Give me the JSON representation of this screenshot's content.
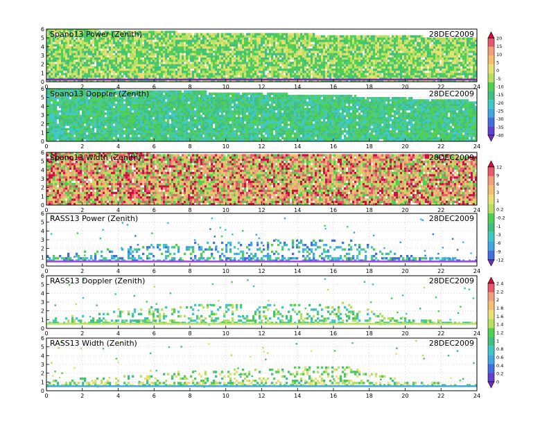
{
  "date": "28DEC2009",
  "x_ticks": [
    "0",
    "2",
    "4",
    "6",
    "8",
    "10",
    "12",
    "14",
    "16",
    "18",
    "20",
    "22",
    "24"
  ],
  "y_ticks": [
    "0",
    "1",
    "2",
    "3",
    "4",
    "5",
    "6"
  ],
  "colorbars": [
    {
      "id": "cb-power-doppler",
      "labels": [
        "20",
        "15",
        "10",
        "5",
        "0",
        "-5",
        "-10",
        "-15",
        "-20",
        "-25",
        "-30",
        "-35",
        "-40"
      ],
      "colors": [
        "#cc1040",
        "#e85a6a",
        "#f0a07a",
        "#f2c070",
        "#e8e070",
        "#b8e060",
        "#50d050",
        "#40c080",
        "#40c8c8",
        "#40a8e0",
        "#4070e0",
        "#6040d0",
        "#7a28b8"
      ]
    },
    {
      "id": "cb-width-power",
      "labels": [
        "12",
        "9",
        "6",
        "3",
        "1",
        "0.2",
        "-0.2",
        "-1",
        "-3",
        "-6",
        "-9",
        "-12"
      ],
      "colors": [
        "#cc1040",
        "#e85a6a",
        "#f0a07a",
        "#f2c070",
        "#e8e070",
        "#b8e060",
        "#50d050",
        "#40c080",
        "#40c8c8",
        "#40a8e0",
        "#4070e0",
        "#7a28b8"
      ]
    },
    {
      "id": "cb-rass",
      "labels": [
        "2.4",
        "2.2",
        "2",
        "1.8",
        "1.6",
        "1.4",
        "1.2",
        "1",
        "0.8",
        "0.6",
        "0.4",
        "0.2",
        "0"
      ],
      "colors": [
        "#cc1040",
        "#e85a6a",
        "#f0a07a",
        "#f2c070",
        "#e8e070",
        "#b8e060",
        "#50d050",
        "#40c080",
        "#40c8c8",
        "#40a8e0",
        "#4070e0",
        "#6040d0",
        "#7a28b8"
      ]
    }
  ],
  "chart_data": [
    {
      "type": "heatmap",
      "title": "Spano13 Power (Zenith)",
      "date": "28DEC2009",
      "xlim": [
        0,
        24
      ],
      "ylim": [
        0,
        6
      ],
      "colorbar": "cb-power-doppler",
      "coverage": [
        [
          0,
          6
        ],
        [
          6,
          5.6
        ],
        [
          12,
          5.4
        ],
        [
          18,
          5.2
        ],
        [
          24,
          4.9
        ]
      ],
      "dominant_colors": [
        "#50d050",
        "#b8e060",
        "#e8e070",
        "#40c080"
      ],
      "base_band_color": "#7a28b8"
    },
    {
      "type": "heatmap",
      "title": "Spano13 Doppler (Zenith)",
      "date": "28DEC2009",
      "xlim": [
        0,
        24
      ],
      "ylim": [
        0,
        6
      ],
      "colorbar": "cb-power-doppler",
      "coverage": [
        [
          0,
          6
        ],
        [
          6,
          5.7
        ],
        [
          12,
          5.4
        ],
        [
          18,
          5.0
        ],
        [
          24,
          4.5
        ]
      ],
      "dominant_colors": [
        "#50d050",
        "#40c080",
        "#40c8c8"
      ]
    },
    {
      "type": "heatmap",
      "title": "Spano13 Width (Zenith)",
      "date": "28DEC2009",
      "xlim": [
        0,
        24
      ],
      "ylim": [
        0,
        6
      ],
      "colorbar": "cb-width-power",
      "coverage": [
        [
          0,
          6
        ],
        [
          6,
          5.8
        ],
        [
          12,
          5.8
        ],
        [
          18,
          5.8
        ],
        [
          24,
          5.5
        ]
      ],
      "dominant_colors": [
        "#50d050",
        "#b8e060",
        "#f2c070",
        "#f0a07a",
        "#e85a6a",
        "#cc1040"
      ]
    },
    {
      "type": "heatmap",
      "title": "RASS13 Power (Zenith)",
      "date": "28DEC2009",
      "xlim": [
        0,
        24
      ],
      "ylim": [
        0,
        6
      ],
      "colorbar": "cb-width-power",
      "coverage": [
        [
          0,
          1.2
        ],
        [
          6.8,
          2.5
        ],
        [
          16.5,
          3.0
        ],
        [
          20,
          1.2
        ],
        [
          24,
          0.6
        ]
      ],
      "dominant_colors": [
        "#40c8c8",
        "#40a8e0",
        "#4070e0",
        "#50d050"
      ],
      "base_band_color": "#a040e0"
    },
    {
      "type": "heatmap",
      "title": "RASS13 Doppler (Zenith)",
      "date": "28DEC2009",
      "xlim": [
        0,
        24
      ],
      "ylim": [
        0,
        6
      ],
      "colorbar": "cb-rass",
      "coverage": [
        [
          0,
          1.0
        ],
        [
          6.8,
          2.5
        ],
        [
          16.5,
          2.8
        ],
        [
          20,
          1.0
        ],
        [
          24,
          0.5
        ]
      ],
      "dominant_colors": [
        "#40c8c8",
        "#40c080",
        "#50d050",
        "#b8e060"
      ],
      "base_band_color": "#b8e060"
    },
    {
      "type": "heatmap",
      "title": "RASS13 Width (Zenith)",
      "date": "28DEC2009",
      "xlim": [
        0,
        24
      ],
      "ylim": [
        0,
        6
      ],
      "colorbar": "cb-rass",
      "coverage": [
        [
          0,
          1.0
        ],
        [
          6.8,
          2.0
        ],
        [
          16.5,
          2.8
        ],
        [
          20,
          1.0
        ],
        [
          24,
          0.5
        ]
      ],
      "dominant_colors": [
        "#50d050",
        "#b8e060",
        "#e8e070",
        "#40c080"
      ],
      "base_band_color": "#40a8e0"
    }
  ]
}
